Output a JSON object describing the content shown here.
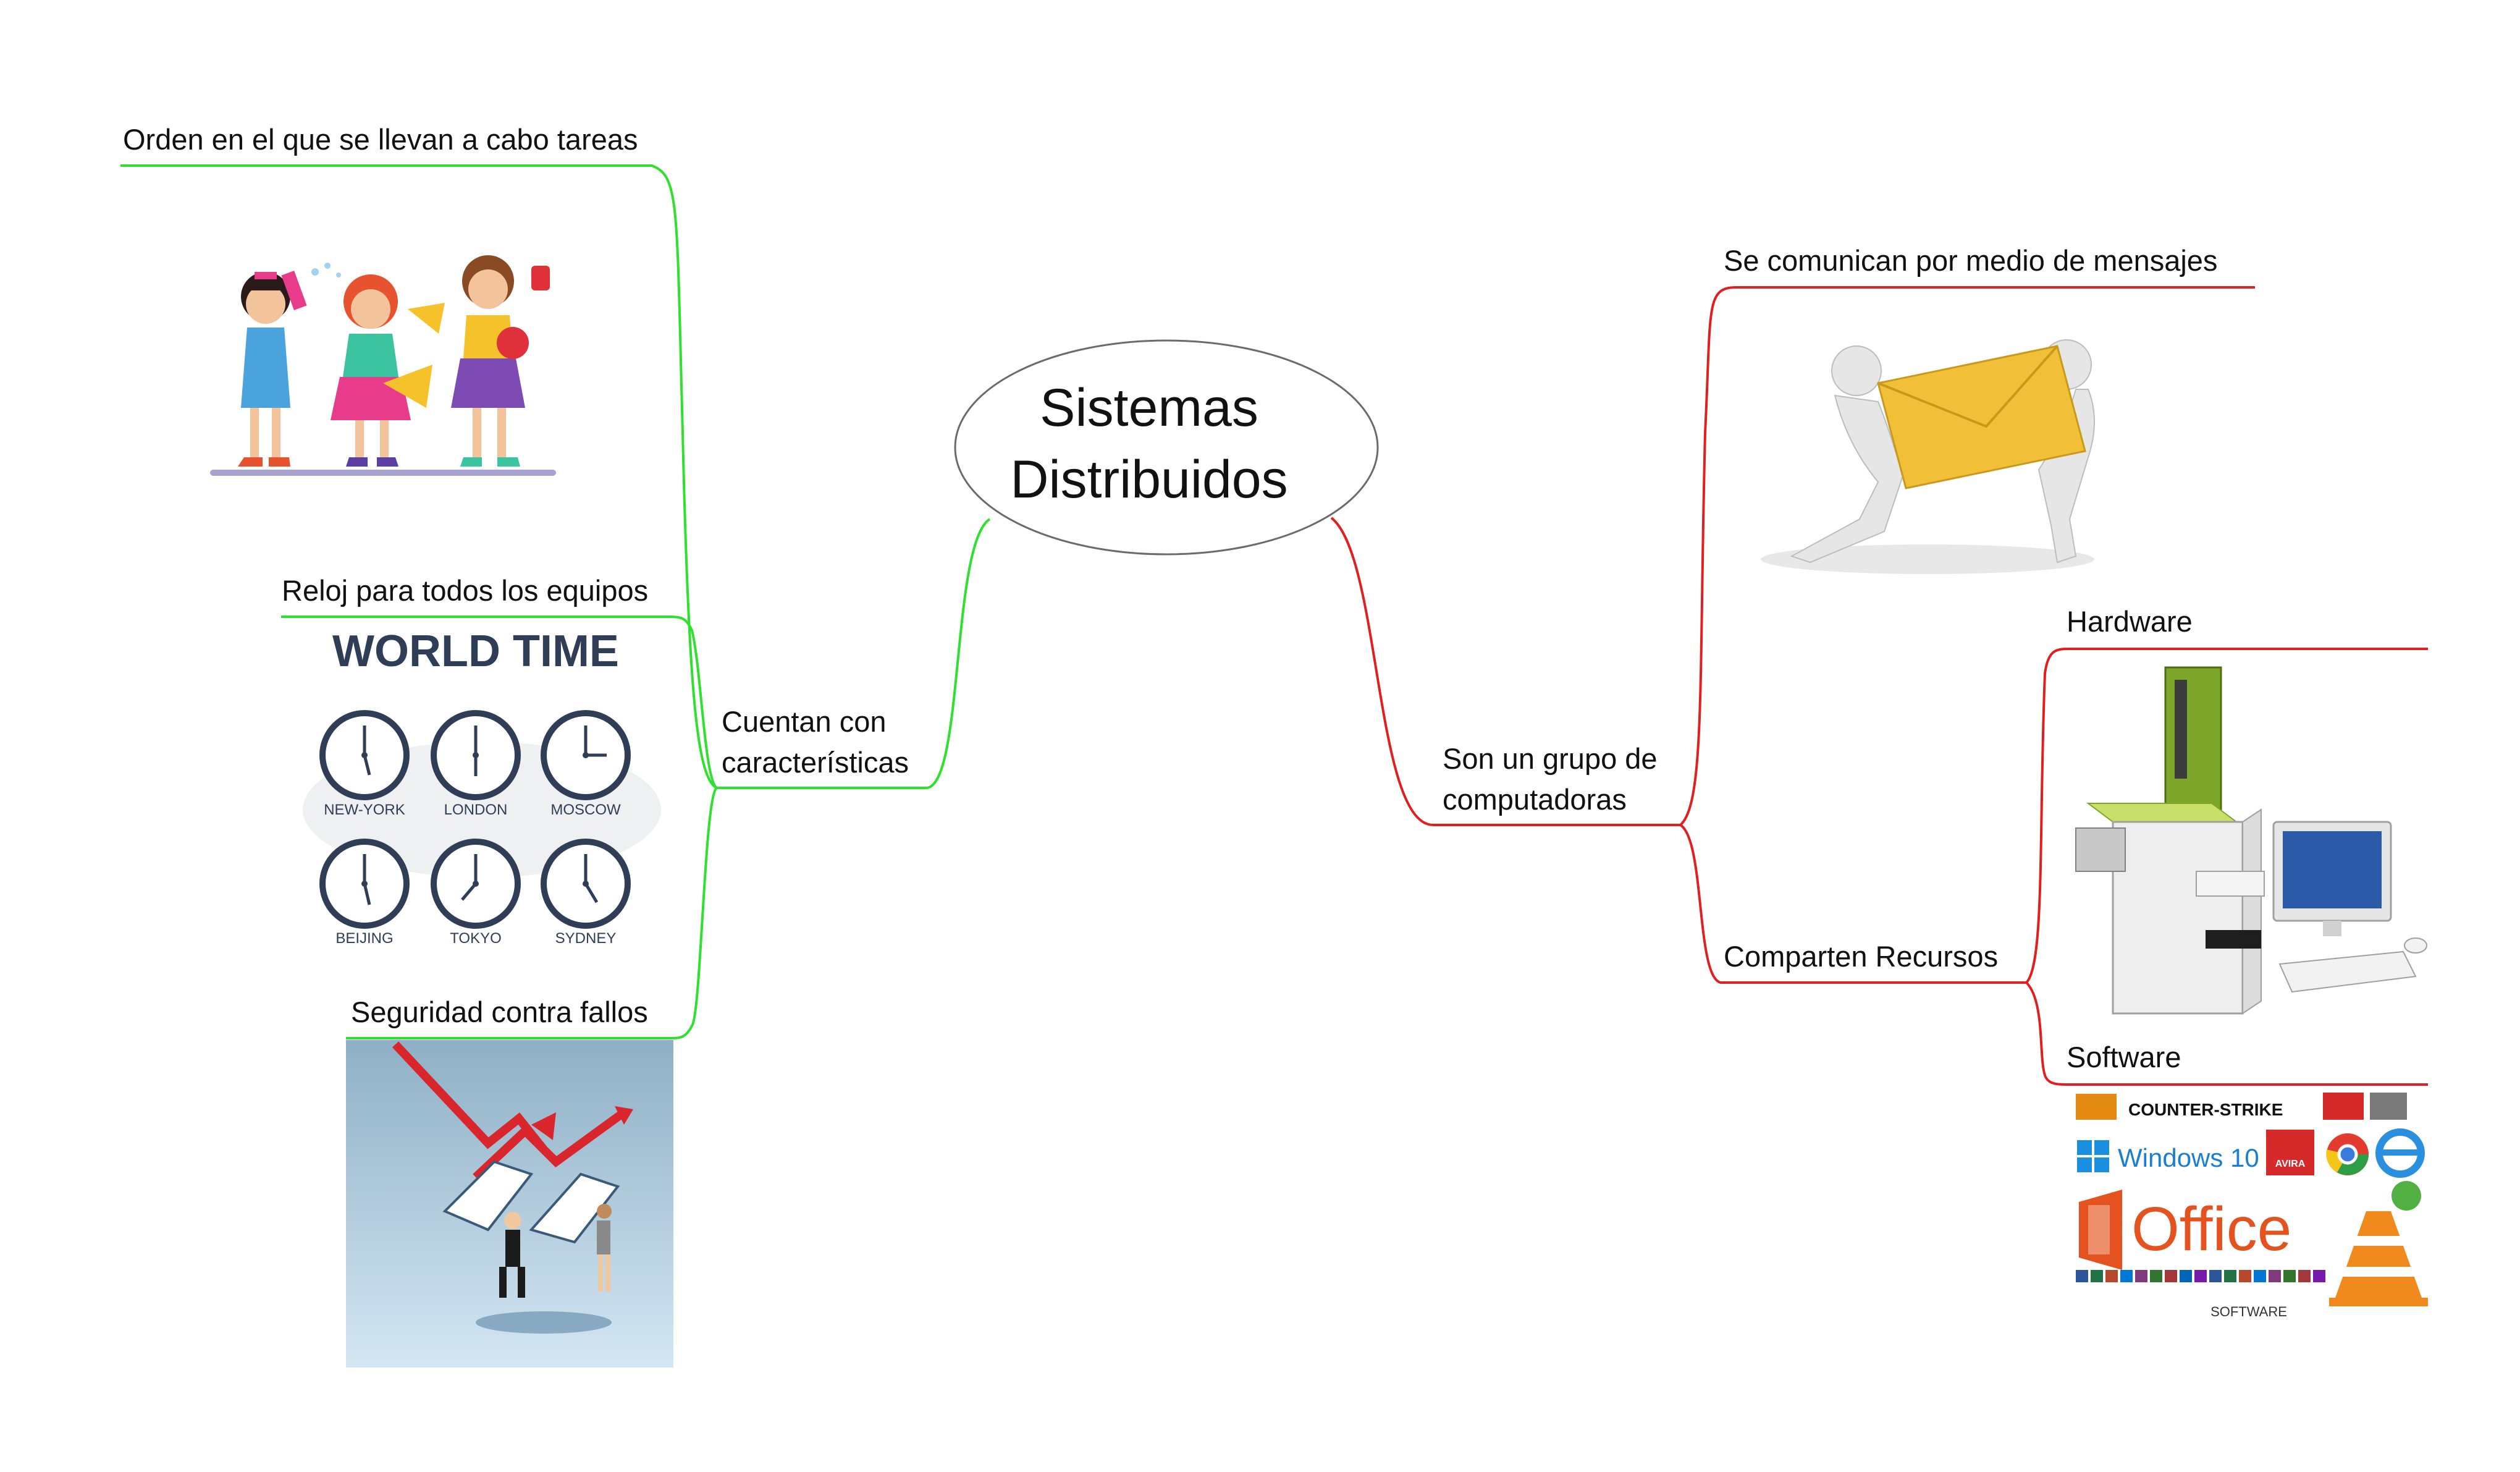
{
  "root": {
    "line1": "Sistemas",
    "line2": "Distribuidos"
  },
  "left": {
    "branch_line1": "Cuentan con",
    "branch_line2": "características",
    "order": "Orden en el que se llevan a cabo tareas",
    "clock": "Reloj para todos los equipos",
    "security": "Seguridad contra fallos"
  },
  "right": {
    "branch_line1": "Son un grupo de",
    "branch_line2": "computadoras",
    "messages": "Se comunican por medio de mensajes",
    "resources": "Comparten Recursos",
    "hardware": "Hardware",
    "software": "Software"
  },
  "world_time": {
    "title": "WORLD TIME",
    "cities": [
      "NEW-YORK",
      "LONDON",
      "MOSCOW",
      "BEIJING",
      "TOKYO",
      "SYDNEY"
    ]
  },
  "software_img": {
    "office": "Office",
    "windows": "Windows 10",
    "cs": "COUNTER-STRIKE",
    "avira": "AVIRA",
    "caption": "SOFTWARE"
  },
  "colors": {
    "left_branch": "#2fe02f",
    "right_branch": "#e02020",
    "root_border": "#6b6b6b"
  }
}
